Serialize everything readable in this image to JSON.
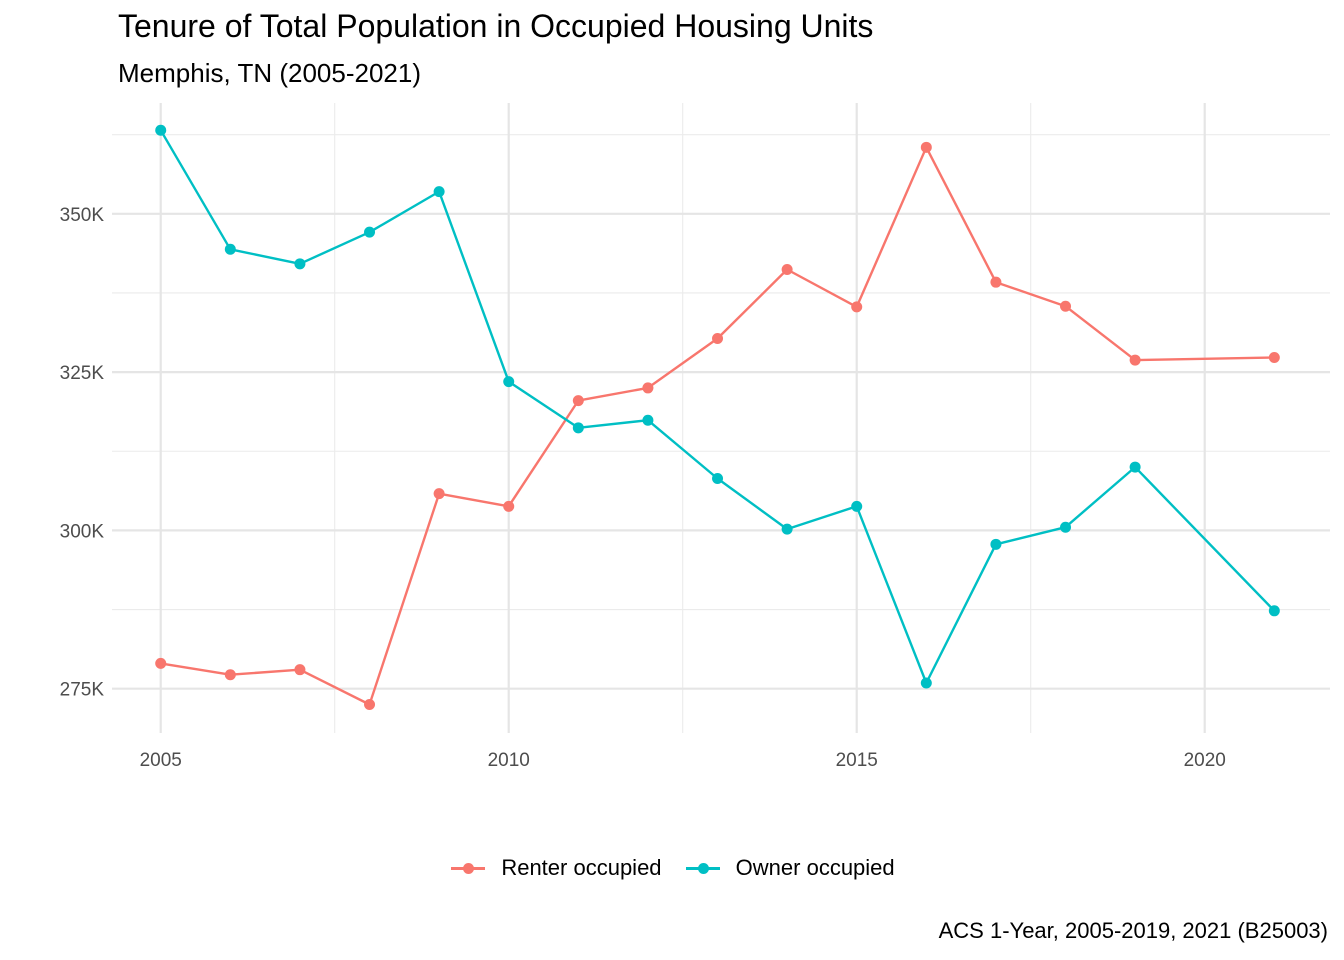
{
  "chart_data": {
    "type": "line",
    "title": "Tenure of Total Population in Occupied Housing Units",
    "subtitle": "Memphis, TN (2005-2021)",
    "caption": "ACS 1-Year, 2005-2019, 2021 (B25003)",
    "xlabel": "",
    "ylabel": "",
    "xlim": [
      2004.3,
      2021.8
    ],
    "ylim": [
      268000,
      367500
    ],
    "x_ticks": [
      2005,
      2010,
      2015,
      2020
    ],
    "y_ticks": [
      275000,
      300000,
      325000,
      350000
    ],
    "y_tick_labels": [
      "275K",
      "300K",
      "325K",
      "350K"
    ],
    "grid": true,
    "legend_position": "bottom",
    "series": [
      {
        "name": "Renter occupied",
        "color": "#F8766D",
        "x": [
          2005,
          2006,
          2007,
          2008,
          2009,
          2010,
          2011,
          2012,
          2013,
          2014,
          2015,
          2016,
          2017,
          2018,
          2019,
          2021
        ],
        "values": [
          279000,
          277200,
          278000,
          272500,
          305800,
          303800,
          320500,
          322500,
          330300,
          341200,
          335300,
          360500,
          339200,
          335400,
          326900,
          327300
        ]
      },
      {
        "name": "Owner occupied",
        "color": "#00BFC4",
        "x": [
          2005,
          2006,
          2007,
          2008,
          2009,
          2010,
          2011,
          2012,
          2013,
          2014,
          2015,
          2016,
          2017,
          2018,
          2019,
          2021
        ],
        "values": [
          363200,
          344400,
          342100,
          347100,
          353500,
          323500,
          316200,
          317400,
          308200,
          300200,
          303800,
          275900,
          297800,
          300500,
          310000,
          287300
        ]
      }
    ]
  }
}
